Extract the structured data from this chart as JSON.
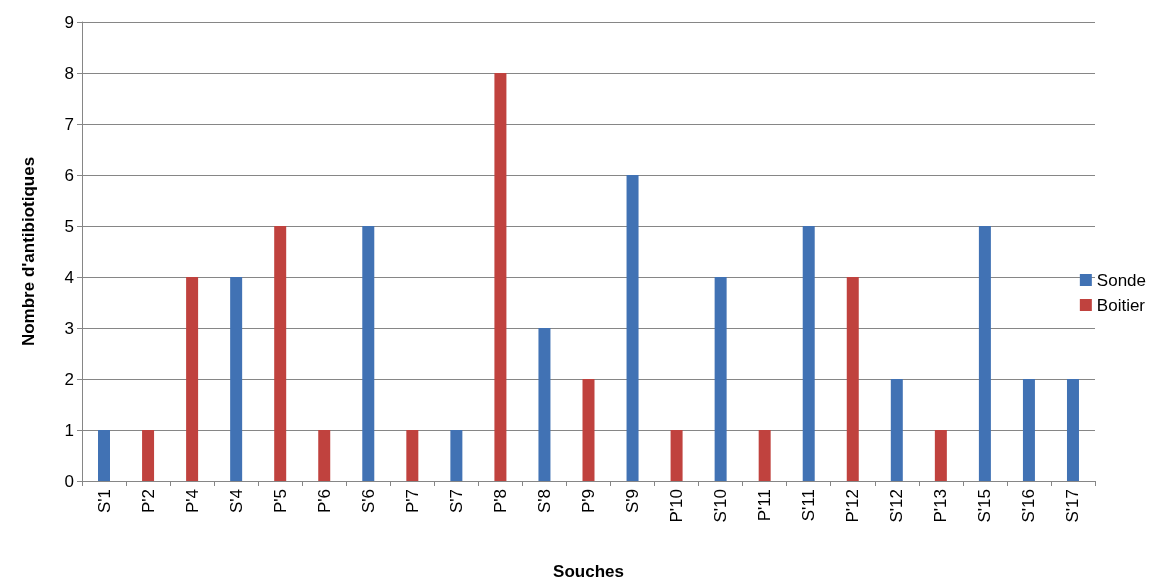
{
  "chart_data": {
    "type": "bar",
    "xlabel": "Souches",
    "ylabel": "Nombre d'antibiotiques",
    "categories": [
      "S'1",
      "P'2",
      "P'4",
      "S'4",
      "P'5",
      "P'6",
      "S'6",
      "P'7",
      "S'7",
      "P'8",
      "S'8",
      "P'9",
      "S'9",
      "P'10",
      "S'10",
      "P'11",
      "S'11",
      "P'12",
      "S'12",
      "P'13",
      "S'15",
      "S'16",
      "S'17"
    ],
    "series": [
      {
        "name": "Sonde",
        "color": "#4172b4",
        "values": [
          1,
          null,
          null,
          4,
          null,
          null,
          5,
          null,
          1,
          null,
          3,
          null,
          6,
          null,
          4,
          null,
          5,
          null,
          2,
          null,
          5,
          2,
          2
        ]
      },
      {
        "name": "Boitier",
        "color": "#c0423e",
        "values": [
          null,
          1,
          4,
          null,
          5,
          1,
          null,
          1,
          null,
          8,
          null,
          2,
          null,
          1,
          null,
          1,
          null,
          4,
          null,
          1,
          null,
          null,
          null
        ]
      }
    ],
    "ylim": [
      0,
      9
    ],
    "yticks": [
      0,
      1,
      2,
      3,
      4,
      5,
      6,
      7,
      8,
      9
    ],
    "grid": "y",
    "legend": "right"
  }
}
